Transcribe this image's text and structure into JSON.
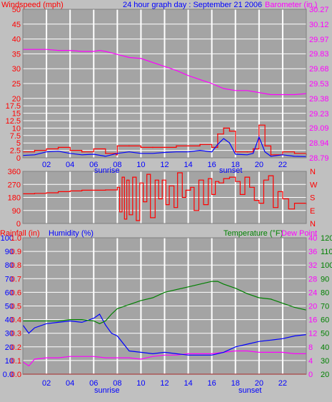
{
  "header": {
    "left_label": "Windspeed (mph)",
    "center_label": "24 hour graph day : September 21 2006",
    "right_label": "Barometer (in.)"
  },
  "bottom_header": {
    "rain_label": "Rainfall (in)",
    "humidity_label": "Humidity (%)",
    "temperature_label": "Temperature (°F)",
    "dewpoint_label": "Dew Point"
  },
  "colors": {
    "plot_bg": "#a4a4a4",
    "wind": "#ff0000",
    "gust_avg": "#0000ff",
    "barometer": "#ff00ff",
    "direction": "#ff0000",
    "humidity": "#0000ff",
    "temperature": "#008000",
    "dewpoint": "#ff00ff",
    "rain": "#ff0000",
    "grid": "#ffffff"
  },
  "x_axis": {
    "ticks": [
      "02",
      "04",
      "06",
      "08",
      "10",
      "12",
      "14",
      "16",
      "18",
      "20",
      "22"
    ],
    "sunrise_label": "sunrise",
    "sunset_label": "sunset"
  },
  "chart_data": [
    {
      "type": "line",
      "title": "24 hour graph day : September 21 2006",
      "xlim": [
        0,
        24
      ],
      "ylabel_left": "Windspeed (mph)",
      "ylim_left": [
        0,
        50
      ],
      "yticks_left": [
        "0",
        "2.5",
        "5",
        "7.5",
        "10",
        "12.5",
        "15",
        "17.5",
        "20",
        "25",
        "30",
        "35",
        "40",
        "45",
        "50"
      ],
      "ylabel_right": "Barometer (in.)",
      "ylim_right": [
        28.79,
        30.27
      ],
      "yticks_right": [
        "28.79",
        "28.94",
        "29.09",
        "29.23",
        "29.38",
        "29.53",
        "29.68",
        "29.83",
        "29.97",
        "30.12",
        "30.27"
      ],
      "series": [
        {
          "name": "Windspeed (mph)",
          "axis": "left",
          "x": [
            0,
            1,
            2,
            3,
            4,
            5,
            6,
            7,
            7.9,
            8,
            9,
            10,
            11,
            12,
            13,
            14,
            15,
            16,
            16.5,
            17,
            17.5,
            18,
            19,
            19.5,
            20,
            20.5,
            21,
            22,
            23,
            24
          ],
          "values": [
            2,
            2.5,
            3,
            3.5,
            2.5,
            2,
            3,
            1.5,
            1,
            4,
            4,
            3.5,
            3.5,
            3.5,
            4,
            4,
            4.5,
            3.5,
            8,
            10,
            9,
            2,
            2,
            3,
            11,
            4,
            1,
            2,
            1.5,
            1
          ]
        },
        {
          "name": "",
          "axis": "left",
          "x": [
            0,
            1,
            2,
            3,
            4,
            5,
            6,
            7,
            8,
            9,
            10,
            11,
            12,
            13,
            14,
            15,
            16,
            16.5,
            17,
            17.5,
            18,
            19,
            19.5,
            20,
            20.5,
            21,
            22,
            23,
            24
          ],
          "values": [
            0.8,
            1,
            2,
            2.2,
            1.5,
            1,
            1.2,
            0.5,
            1.5,
            2,
            1.5,
            1.5,
            1.8,
            2,
            2,
            2.5,
            2,
            4.5,
            6.5,
            5,
            1.2,
            1,
            1.5,
            7,
            2,
            0.5,
            1,
            0.5,
            0.4
          ]
        },
        {
          "name": "Barometer (in.)",
          "axis": "right",
          "x": [
            0,
            1,
            2,
            3,
            4,
            5,
            6,
            6.5,
            7,
            8,
            9,
            10,
            11,
            12,
            13,
            14,
            15,
            16,
            17,
            18,
            19,
            20,
            21,
            22,
            23,
            24
          ],
          "values": [
            29.87,
            29.87,
            29.87,
            29.86,
            29.86,
            29.85,
            29.85,
            29.86,
            29.85,
            29.82,
            29.79,
            29.78,
            29.74,
            29.7,
            29.66,
            29.61,
            29.57,
            29.53,
            29.48,
            29.46,
            29.46,
            29.44,
            29.42,
            29.42,
            29.42,
            29.43
          ]
        }
      ]
    },
    {
      "type": "line",
      "xlim": [
        0,
        24
      ],
      "ylim": [
        0,
        360
      ],
      "yticks": [
        "0",
        "90",
        "180",
        "270",
        "360"
      ],
      "yticks_right": [
        "N",
        "E",
        "S",
        "W",
        "N"
      ],
      "series": [
        {
          "name": "",
          "x": [
            0,
            1,
            2,
            3,
            4,
            5,
            6,
            7,
            7.6,
            8,
            8.2,
            8.4,
            8.6,
            8.8,
            9,
            9.3,
            9.6,
            9.9,
            10.2,
            10.5,
            10.8,
            11.2,
            11.5,
            11.8,
            12.1,
            12.4,
            12.8,
            13.1,
            13.5,
            13.8,
            14.2,
            14.5,
            14.9,
            15.3,
            15.7,
            16,
            16.3,
            16.6,
            17,
            17.5,
            18,
            18.4,
            18.8,
            19.2,
            19.6,
            20,
            20.4,
            20.8,
            21.2,
            21.6,
            22,
            22.5,
            23,
            24
          ],
          "values": [
            205,
            208,
            212,
            220,
            225,
            230,
            230,
            232,
            232,
            250,
            80,
            320,
            30,
            300,
            60,
            320,
            20,
            280,
            150,
            340,
            40,
            300,
            170,
            300,
            130,
            260,
            110,
            350,
            180,
            230,
            250,
            90,
            300,
            130,
            310,
            200,
            290,
            280,
            310,
            320,
            290,
            200,
            320,
            250,
            160,
            140,
            300,
            330,
            110,
            220,
            170,
            100,
            140,
            130
          ]
        }
      ]
    },
    {
      "type": "line",
      "xlim": [
        0,
        24
      ],
      "ylim_humidity": [
        0,
        100
      ],
      "yticks_humidity": [
        "0.0",
        "10",
        "20",
        "30",
        "40",
        "50",
        "60",
        "70",
        "80",
        "90",
        "100"
      ],
      "ylim_rain": [
        0,
        1.0
      ],
      "yticks_rain": [
        "0.0",
        "0.1",
        "0.2",
        "0.3",
        "0.4",
        "0.5",
        "0.6",
        "0.7",
        "0.8",
        "0.9",
        "1.0"
      ],
      "ylim_temp_c": [
        0,
        40
      ],
      "yticks_temp_c": [
        "0",
        "4",
        "8",
        "12",
        "16",
        "20",
        "24",
        "28",
        "32",
        "36",
        "40"
      ],
      "ylim_temp_f": [
        20,
        120
      ],
      "yticks_temp_f": [
        "20",
        "30",
        "40",
        "50",
        "60",
        "70",
        "80",
        "90",
        "100",
        "110",
        "120"
      ],
      "series": [
        {
          "name": "Humidity (%)",
          "axis": "humidity",
          "x": [
            0,
            0.5,
            1,
            2,
            3,
            4,
            5,
            6,
            6.5,
            7,
            7.5,
            8,
            9,
            10,
            11,
            12,
            13,
            14,
            15,
            16,
            17,
            18,
            19,
            20,
            21,
            22,
            23,
            24
          ],
          "values": [
            36,
            30,
            34,
            37,
            38,
            39,
            38,
            41,
            44,
            36,
            30,
            28,
            17,
            16,
            15,
            16,
            15,
            14,
            14,
            14,
            16,
            20,
            22,
            24,
            25,
            26,
            28,
            29
          ]
        },
        {
          "name": "Temperature (°F)",
          "axis": "temp_f",
          "x": [
            0,
            1,
            2,
            3,
            4,
            5,
            6,
            6.5,
            7,
            7.5,
            8,
            9,
            10,
            11,
            12,
            13,
            14,
            15,
            16,
            16.5,
            17,
            18,
            19,
            20,
            21,
            22,
            23,
            24
          ],
          "values": [
            59,
            59,
            59,
            59,
            60,
            60,
            59,
            57,
            59,
            64,
            68,
            71,
            74,
            76,
            80,
            82,
            84,
            86,
            88,
            88,
            86,
            83,
            79,
            76,
            75,
            72,
            69,
            67
          ]
        },
        {
          "name": "Dew Point",
          "axis": "temp_f",
          "x": [
            0,
            0.5,
            1,
            2,
            3,
            4,
            5,
            6,
            7,
            8,
            9,
            10,
            11,
            12,
            13,
            14,
            15,
            16,
            17,
            18,
            19,
            20,
            21,
            22,
            23,
            24
          ],
          "values": [
            29,
            26,
            31,
            32,
            32,
            33,
            33,
            33,
            32,
            32,
            32,
            31,
            33,
            34,
            34,
            35,
            35,
            35,
            36,
            37,
            37,
            36,
            36,
            36,
            35,
            35
          ]
        },
        {
          "name": "Rainfall (in)",
          "axis": "rain",
          "x": [
            0,
            24
          ],
          "values": [
            0,
            0
          ]
        }
      ]
    }
  ]
}
